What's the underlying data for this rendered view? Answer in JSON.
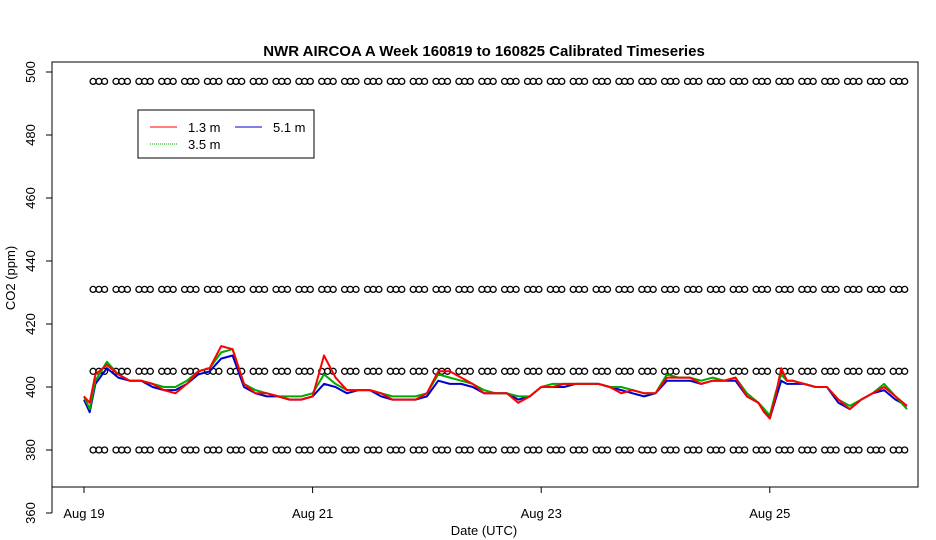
{
  "chart_data": {
    "type": "line",
    "title": "NWR AIRCOA A  Week 160819 to 160825  Calibrated Timeseries",
    "xlabel": "Date (UTC)",
    "ylabel": "CO2 (ppm)",
    "xlim": [
      0,
      7.2
    ],
    "ylim": [
      368,
      503
    ],
    "x_ticks": [
      {
        "label": "Aug 19",
        "value": 0
      },
      {
        "label": "Aug 21",
        "value": 2
      },
      {
        "label": "Aug 23",
        "value": 4
      },
      {
        "label": "Aug 25",
        "value": 6
      }
    ],
    "y_ticks": [
      360,
      380,
      400,
      420,
      440,
      460,
      480,
      500
    ],
    "legend": {
      "placement": "top-left",
      "entries": [
        {
          "label": "1.3 m",
          "color": "#ff0000"
        },
        {
          "label": "5.1 m",
          "color": "#0000cc"
        },
        {
          "label": "3.5 m",
          "color": "#00aa00"
        }
      ]
    },
    "series": [
      {
        "name": "5.1 m",
        "color": "#0000cc",
        "x": [
          0,
          0.05,
          0.1,
          0.2,
          0.3,
          0.4,
          0.5,
          0.6,
          0.7,
          0.8,
          0.9,
          1.0,
          1.1,
          1.2,
          1.3,
          1.4,
          1.5,
          1.6,
          1.7,
          1.8,
          1.9,
          2.0,
          2.1,
          2.2,
          2.3,
          2.4,
          2.5,
          2.6,
          2.7,
          2.8,
          2.9,
          3.0,
          3.1,
          3.2,
          3.3,
          3.4,
          3.5,
          3.6,
          3.7,
          3.8,
          3.9,
          4.0,
          4.1,
          4.2,
          4.3,
          4.4,
          4.5,
          4.6,
          4.7,
          4.8,
          4.9,
          5.0,
          5.1,
          5.2,
          5.3,
          5.4,
          5.5,
          5.6,
          5.7,
          5.8,
          5.9,
          5.95,
          6.0,
          6.05,
          6.1,
          6.15,
          6.2,
          6.3,
          6.4,
          6.5,
          6.6,
          6.7,
          6.8,
          6.9,
          7.0,
          7.1,
          7.2
        ],
        "values": [
          396,
          392,
          401,
          406,
          403,
          402,
          402,
          400,
          399,
          399,
          401,
          404,
          405,
          409,
          410,
          400,
          398,
          397,
          397,
          396,
          396,
          397,
          401,
          400,
          398,
          399,
          399,
          397,
          396,
          396,
          396,
          397,
          402,
          401,
          401,
          400,
          398,
          398,
          398,
          396,
          397,
          400,
          400,
          400,
          401,
          401,
          401,
          400,
          399,
          398,
          397,
          398,
          402,
          402,
          402,
          401,
          402,
          402,
          402,
          397,
          395,
          393,
          390,
          396,
          402,
          401,
          401,
          401,
          400,
          400,
          395,
          393,
          396,
          398,
          399,
          396,
          394
        ]
      },
      {
        "name": "3.5 m",
        "color": "#00aa00",
        "x": [
          0,
          0.05,
          0.1,
          0.2,
          0.3,
          0.4,
          0.5,
          0.6,
          0.7,
          0.8,
          0.9,
          1.0,
          1.1,
          1.2,
          1.3,
          1.4,
          1.5,
          1.6,
          1.7,
          1.8,
          1.9,
          2.0,
          2.1,
          2.2,
          2.3,
          2.4,
          2.5,
          2.6,
          2.7,
          2.8,
          2.9,
          3.0,
          3.1,
          3.2,
          3.3,
          3.4,
          3.5,
          3.6,
          3.7,
          3.8,
          3.9,
          4.0,
          4.1,
          4.2,
          4.3,
          4.4,
          4.5,
          4.6,
          4.7,
          4.8,
          4.9,
          5.0,
          5.1,
          5.2,
          5.3,
          5.4,
          5.5,
          5.6,
          5.7,
          5.8,
          5.9,
          5.95,
          6.0,
          6.05,
          6.1,
          6.15,
          6.2,
          6.3,
          6.4,
          6.5,
          6.6,
          6.7,
          6.8,
          6.9,
          7.0,
          7.1,
          7.2
        ],
        "values": [
          397,
          393,
          402,
          408,
          404,
          402,
          402,
          401,
          400,
          400,
          402,
          405,
          406,
          411,
          412,
          401,
          399,
          398,
          397,
          397,
          397,
          398,
          404,
          401,
          399,
          399,
          399,
          398,
          397,
          397,
          397,
          398,
          404,
          403,
          402,
          401,
          399,
          398,
          398,
          397,
          397,
          400,
          401,
          401,
          401,
          401,
          401,
          400,
          400,
          399,
          398,
          398,
          404,
          403,
          403,
          402,
          403,
          402,
          403,
          398,
          395,
          393,
          391,
          398,
          404,
          402,
          402,
          401,
          400,
          400,
          396,
          394,
          396,
          398,
          401,
          397,
          393
        ]
      },
      {
        "name": "1.3 m",
        "color": "#ff0000",
        "x": [
          0,
          0.05,
          0.1,
          0.2,
          0.3,
          0.4,
          0.5,
          0.6,
          0.7,
          0.8,
          0.9,
          1.0,
          1.1,
          1.2,
          1.3,
          1.4,
          1.5,
          1.6,
          1.7,
          1.8,
          1.9,
          2.0,
          2.1,
          2.2,
          2.3,
          2.4,
          2.5,
          2.6,
          2.7,
          2.8,
          2.9,
          3.0,
          3.1,
          3.2,
          3.3,
          3.4,
          3.5,
          3.6,
          3.7,
          3.8,
          3.9,
          4.0,
          4.1,
          4.2,
          4.3,
          4.4,
          4.5,
          4.6,
          4.7,
          4.8,
          4.9,
          5.0,
          5.1,
          5.2,
          5.3,
          5.4,
          5.5,
          5.6,
          5.7,
          5.8,
          5.9,
          5.95,
          6.0,
          6.05,
          6.1,
          6.15,
          6.2,
          6.3,
          6.4,
          6.5,
          6.6,
          6.7,
          6.8,
          6.9,
          7.0,
          7.1,
          7.2
        ],
        "values": [
          397,
          395,
          404,
          407,
          404,
          402,
          402,
          401,
          399,
          398,
          401,
          405,
          406,
          413,
          412,
          401,
          398,
          398,
          397,
          396,
          396,
          397,
          410,
          403,
          399,
          399,
          399,
          398,
          396,
          396,
          396,
          398,
          405,
          405,
          403,
          401,
          398,
          398,
          398,
          395,
          397,
          400,
          400,
          401,
          401,
          401,
          401,
          400,
          398,
          399,
          398,
          398,
          403,
          403,
          403,
          401,
          402,
          402,
          403,
          397,
          395,
          392,
          390,
          397,
          406,
          402,
          402,
          401,
          400,
          400,
          396,
          393,
          396,
          398,
          400,
          397,
          394
        ]
      },
      {
        "name": "",
        "type": "scatter",
        "marker": "open-circle",
        "color": "#000000",
        "x_start": 0.08,
        "x_step": 0.05,
        "count": 143,
        "levels": [
          497,
          431,
          405,
          380
        ]
      }
    ]
  }
}
